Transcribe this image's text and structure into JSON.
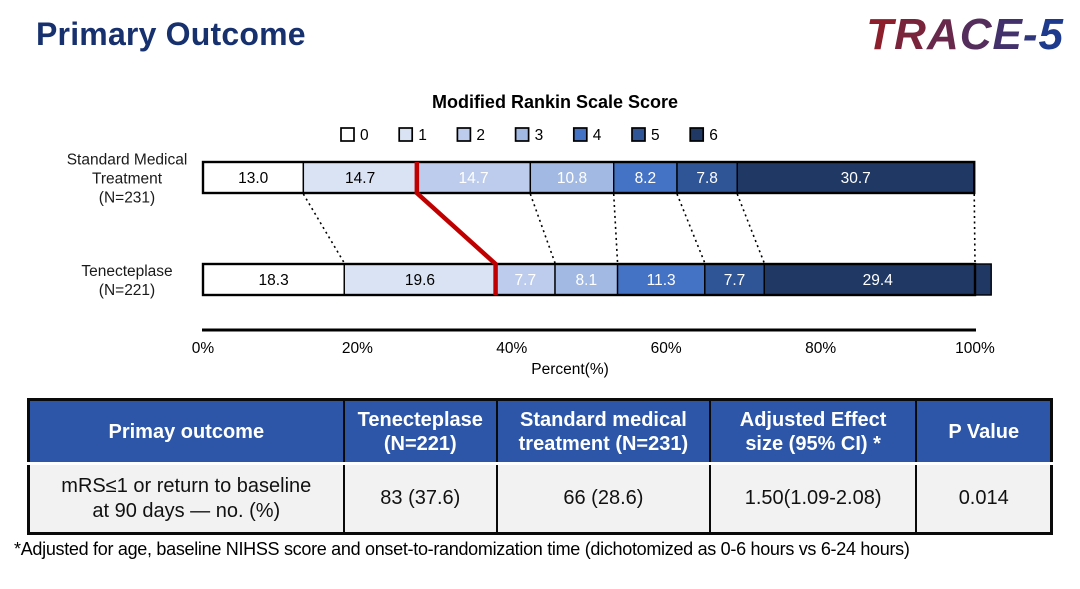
{
  "page": {
    "title": "Primary Outcome",
    "logo": "TRACE-5",
    "logo_color_start": "#8C1F2B",
    "logo_color_end": "#1E3A8C",
    "title_color": "#17316F"
  },
  "chart_data": {
    "type": "bar",
    "subtype": "horizontal-stacked",
    "title": "Modified Rankin Scale Score",
    "legend": [
      "0",
      "1",
      "2",
      "3",
      "4",
      "5",
      "6"
    ],
    "colors": [
      "#FFFFFF",
      "#DAE3F3",
      "#BDCCEC",
      "#A2BAE3",
      "#4472C4",
      "#2F5597",
      "#203864"
    ],
    "value_label_colors": [
      "#000000",
      "#000000",
      "#FFFFFF",
      "#FFFFFF",
      "#FFFFFF",
      "#FFFFFF",
      "#FFFFFF"
    ],
    "series": [
      {
        "name_lines": [
          "Standard Medical",
          "Treatment",
          "(N=231)"
        ],
        "values": [
          13.0,
          14.7,
          14.7,
          10.8,
          8.2,
          7.8,
          30.7
        ]
      },
      {
        "name_lines": [
          "Tenecteplase",
          "(N=221)"
        ],
        "values": [
          18.3,
          19.6,
          7.7,
          8.1,
          11.3,
          7.7,
          29.4
        ]
      }
    ],
    "x_ticks": [
      "0%",
      "20%",
      "40%",
      "60%",
      "80%",
      "100%"
    ],
    "xlabel": "Percent(%)",
    "xlim": [
      0,
      100
    ],
    "grid": false,
    "legend_position": "top",
    "highlight_boundary_index": 2,
    "highlight_color": "#C00000"
  },
  "table": {
    "headers": [
      "Primay outcome",
      "Tenecteplase\n(N=221)",
      "Standard medical\ntreatment (N=231)",
      "Adjusted Effect\nsize (95% CI) *",
      "P Value"
    ],
    "rows": [
      [
        "mRS≤1 or return to baseline\nat 90 days — no. (%)",
        "83 (37.6)",
        "66 (28.6)",
        "1.50(1.09-2.08)",
        "0.014"
      ]
    ],
    "header_bg": "#2D56A8",
    "row_bg": "#F2F2F2"
  },
  "footnote": "*Adjusted for age, baseline NIHSS score and onset-to-randomization time (dichotomized as 0-6 hours vs 6-24 hours)"
}
